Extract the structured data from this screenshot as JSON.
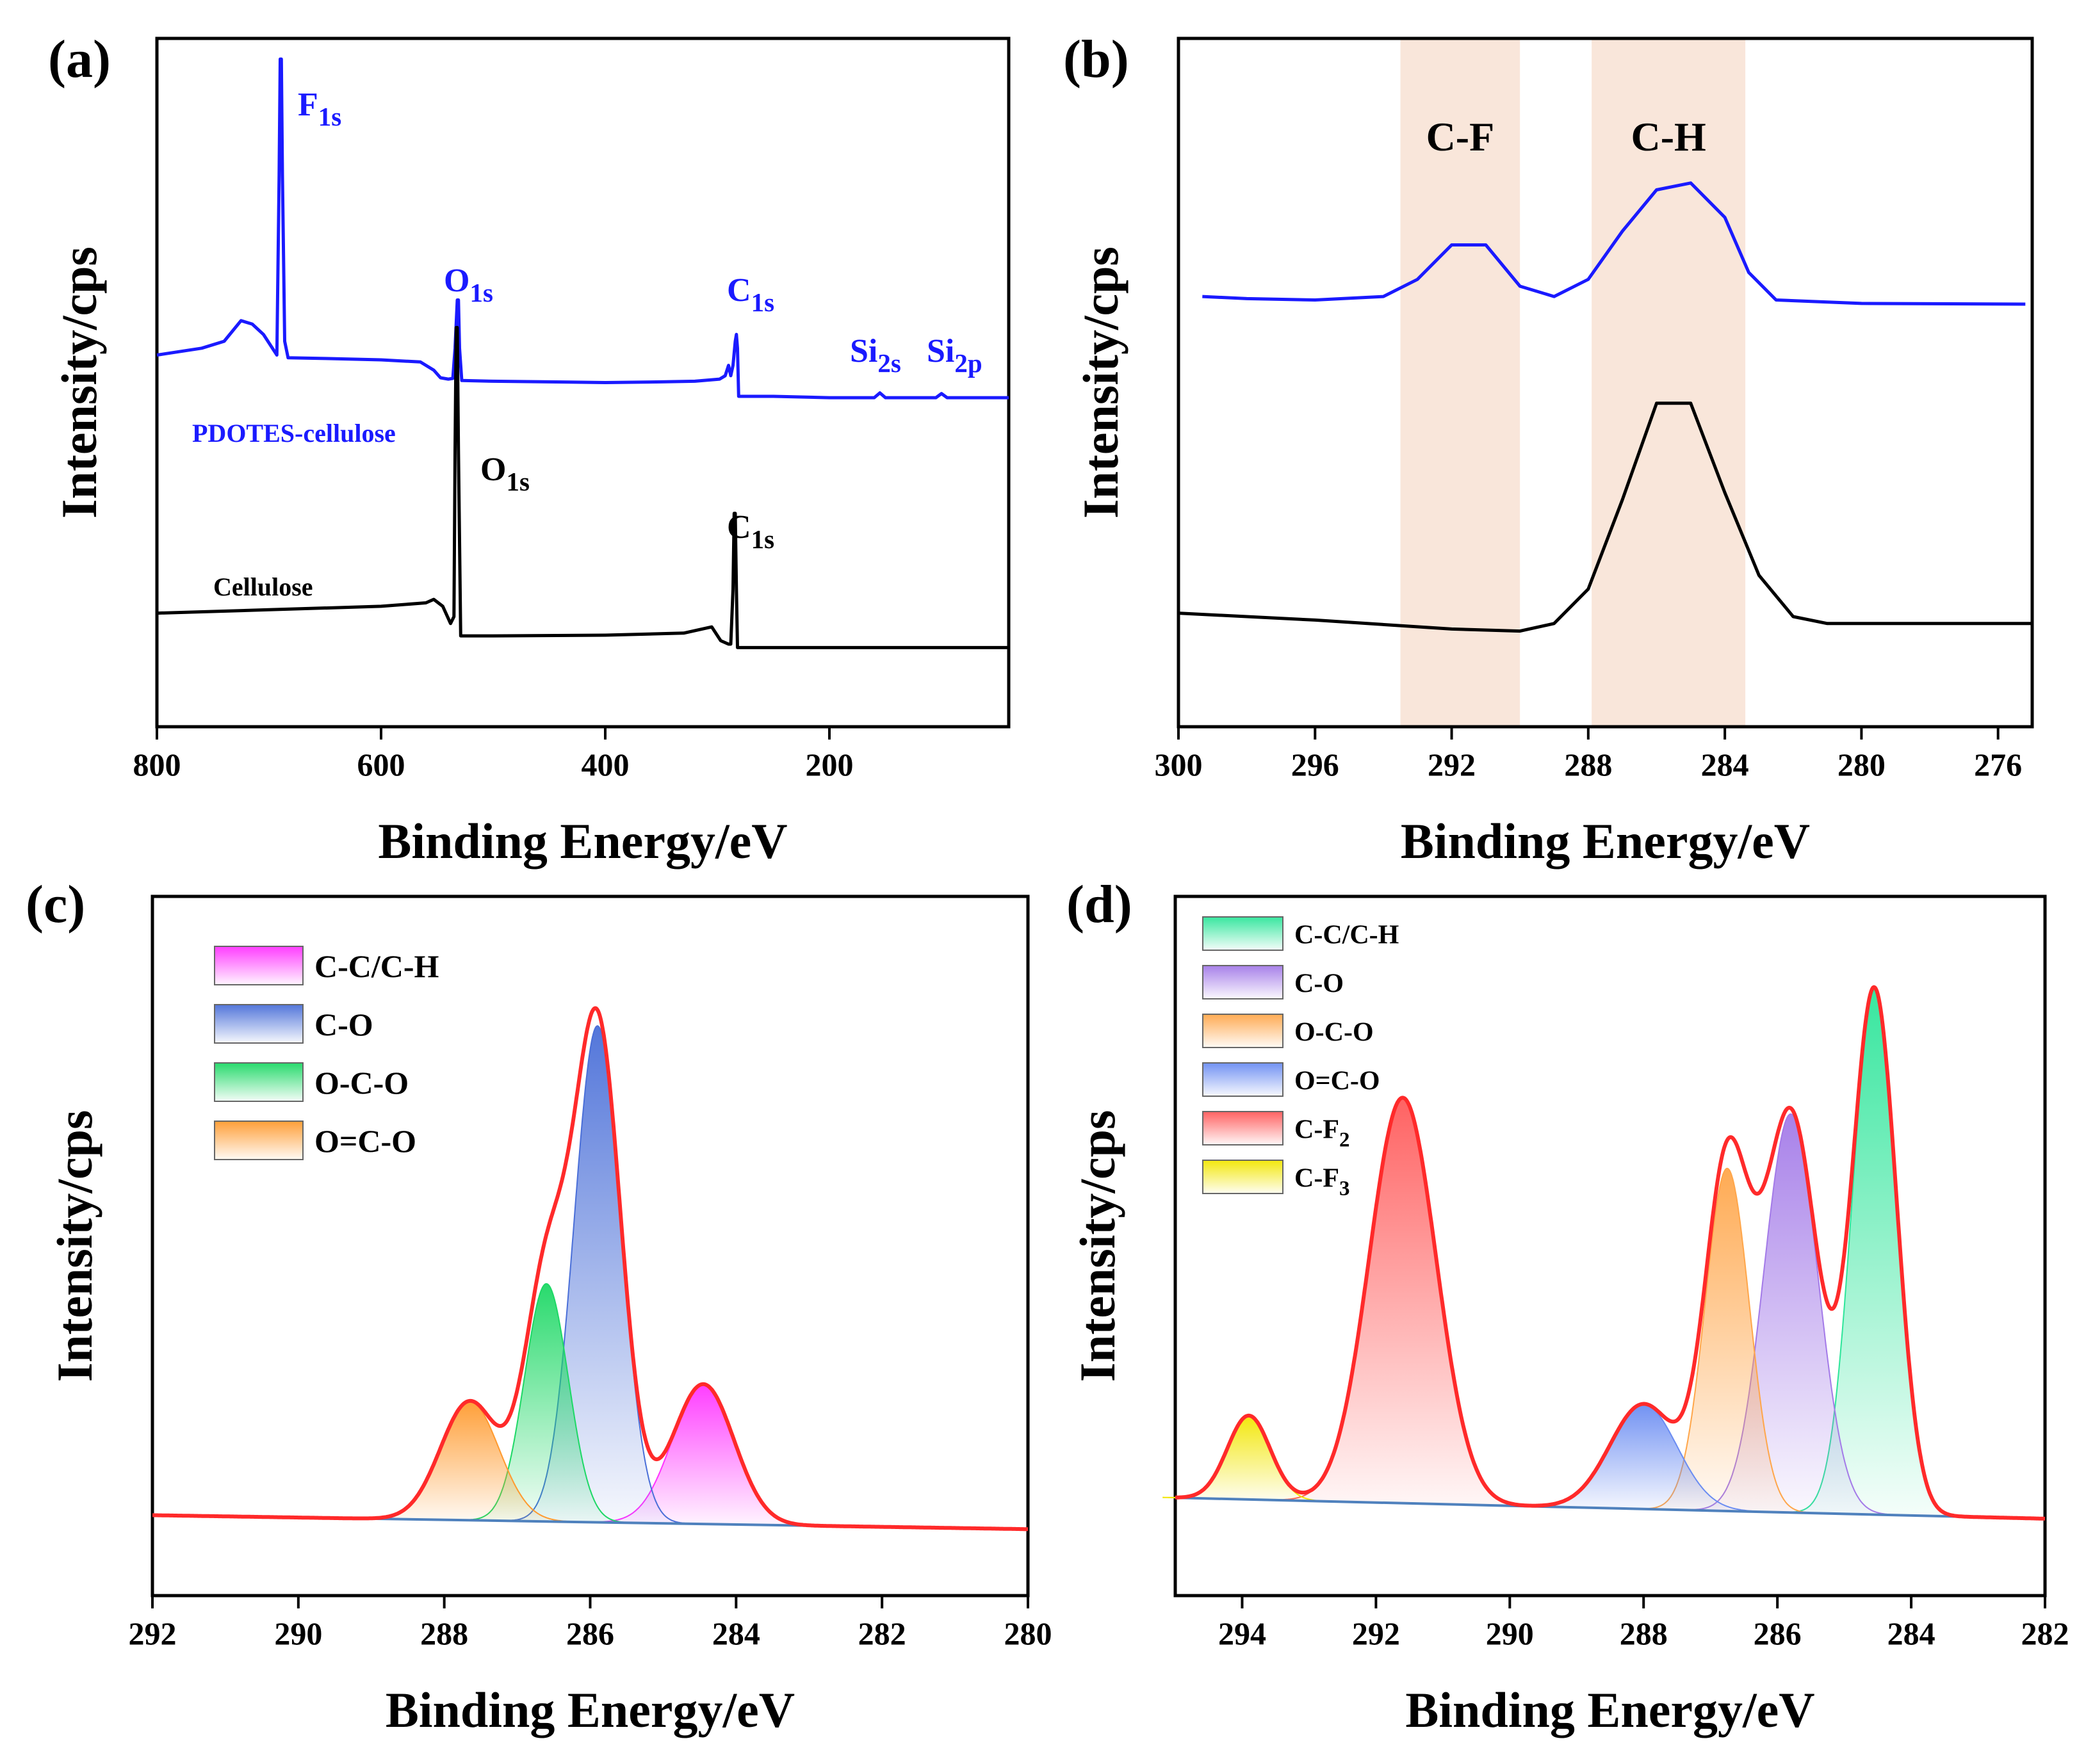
{
  "chart_data": [
    {
      "panel_label": "(a)",
      "type": "line",
      "title": "",
      "xlabel": "Binding Energy/eV",
      "ylabel": "Intensity/cps",
      "xlim": [
        800,
        40
      ],
      "ylim": [
        0,
        100
      ],
      "xticks": [
        800,
        600,
        400,
        200
      ],
      "series": [
        {
          "name": "PDOTES-cellulose",
          "color": "#1a1aff",
          "points": [
            [
              800,
              54
            ],
            [
              760,
              55
            ],
            [
              740,
              56
            ],
            [
              725,
              59
            ],
            [
              715,
              58.5
            ],
            [
              705,
              57
            ],
            [
              697,
              55
            ],
            [
              693,
              54
            ],
            [
              691,
              80
            ],
            [
              690,
              97
            ],
            [
              689,
              97
            ],
            [
              688,
              80
            ],
            [
              686,
              56
            ],
            [
              683,
              53.6
            ],
            [
              650,
              53.5
            ],
            [
              600,
              53.3
            ],
            [
              565,
              53
            ],
            [
              553,
              51.8
            ],
            [
              547,
              50.7
            ],
            [
              540,
              50.5
            ],
            [
              536,
              50.6
            ],
            [
              534,
              55
            ],
            [
              532,
              62
            ],
            [
              531,
              62
            ],
            [
              530,
              55
            ],
            [
              528,
              50.3
            ],
            [
              500,
              50.2
            ],
            [
              450,
              50.1
            ],
            [
              400,
              50
            ],
            [
              350,
              50.1
            ],
            [
              320,
              50.2
            ],
            [
              298,
              50.5
            ],
            [
              293,
              51
            ],
            [
              290,
              52.5
            ],
            [
              288,
              51
            ],
            [
              286,
              52.5
            ],
            [
              284,
              56
            ],
            [
              283,
              57
            ],
            [
              282,
              55
            ],
            [
              281,
              48
            ],
            [
              280,
              48
            ],
            [
              250,
              48
            ],
            [
              200,
              47.8
            ],
            [
              160,
              47.8
            ],
            [
              155,
              48.5
            ],
            [
              150,
              47.8
            ],
            [
              105,
              47.8
            ],
            [
              100,
              48.4
            ],
            [
              95,
              47.8
            ],
            [
              40,
              47.8
            ]
          ]
        },
        {
          "name": "Cellulose",
          "color": "#000000",
          "points": [
            [
              800,
              16.5
            ],
            [
              700,
              17
            ],
            [
              600,
              17.5
            ],
            [
              560,
              18
            ],
            [
              553,
              18.5
            ],
            [
              545,
              17.5
            ],
            [
              538,
              15
            ],
            [
              535,
              16
            ],
            [
              534,
              40
            ],
            [
              533,
              58
            ],
            [
              532,
              58
            ],
            [
              531,
              40
            ],
            [
              529,
              13.2
            ],
            [
              500,
              13.2
            ],
            [
              400,
              13.3
            ],
            [
              330,
              13.6
            ],
            [
              305,
              14.5
            ],
            [
              297,
              12.5
            ],
            [
              290,
              12
            ],
            [
              288,
              12
            ],
            [
              286,
              20
            ],
            [
              285,
              31
            ],
            [
              284,
              31
            ],
            [
              283,
              20
            ],
            [
              282,
              11.5
            ],
            [
              280,
              11.5
            ],
            [
              200,
              11.5
            ],
            [
              40,
              11.5
            ]
          ]
        }
      ],
      "annotations": [
        {
          "base": "F",
          "sub": "1s",
          "color": "#1a1aff"
        },
        {
          "base": "O",
          "sub": "1s",
          "color": "#1a1aff"
        },
        {
          "base": "C",
          "sub": "1s",
          "color": "#1a1aff"
        },
        {
          "base": "Si",
          "sub": "2s",
          "color": "#1a1aff"
        },
        {
          "base": "Si",
          "sub": "2p",
          "color": "#1a1aff"
        },
        {
          "base": "O",
          "sub": "1s",
          "color": "#000000"
        },
        {
          "base": "C",
          "sub": "1s",
          "color": "#000000"
        }
      ]
    },
    {
      "panel_label": "(b)",
      "type": "line",
      "title": "",
      "xlabel": "Binding Energy/eV",
      "ylabel": "Intensity/cps",
      "xlim": [
        300,
        275
      ],
      "ylim": [
        0,
        100
      ],
      "xticks": [
        300,
        296,
        292,
        288,
        284,
        280,
        276
      ],
      "highlight_bands": [
        {
          "label": "C-F",
          "from": 293.5,
          "to": 290.0,
          "color": "#f9e6da"
        },
        {
          "label": "C-H",
          "from": 287.9,
          "to": 283.4,
          "color": "#f9e6da"
        }
      ],
      "series": [
        {
          "name": "PDOTES-cellulose",
          "color": "#1a1aff",
          "points": [
            [
              299.3,
              62.5
            ],
            [
              298,
              62.2
            ],
            [
              296,
              62
            ],
            [
              294,
              62.5
            ],
            [
              293,
              65
            ],
            [
              292,
              70
            ],
            [
              291,
              70
            ],
            [
              290,
              64
            ],
            [
              289,
              62.5
            ],
            [
              288,
              65
            ],
            [
              287,
              72
            ],
            [
              286,
              78
            ],
            [
              285,
              79
            ],
            [
              284,
              74
            ],
            [
              283.3,
              66
            ],
            [
              282.5,
              62
            ],
            [
              280,
              61.5
            ],
            [
              275.2,
              61.4
            ]
          ]
        },
        {
          "name": "Cellulose",
          "color": "#000000",
          "points": [
            [
              300,
              16.5
            ],
            [
              296,
              15.5
            ],
            [
              292,
              14.2
            ],
            [
              290,
              13.9
            ],
            [
              289,
              15
            ],
            [
              288,
              20
            ],
            [
              287,
              33
            ],
            [
              286,
              47
            ],
            [
              285,
              47
            ],
            [
              284,
              34
            ],
            [
              283,
              22
            ],
            [
              282,
              16
            ],
            [
              281,
              15
            ],
            [
              279,
              15
            ],
            [
              275,
              15
            ]
          ]
        }
      ]
    },
    {
      "panel_label": "(c)",
      "type": "line",
      "title": "",
      "xlabel": "Binding Energy/eV",
      "ylabel": "Intensity/cps",
      "xlim": [
        292,
        280
      ],
      "ylim": [
        0,
        100
      ],
      "xticks": [
        292,
        290,
        288,
        286,
        284,
        282,
        280
      ],
      "baseline": {
        "start": 11.5,
        "end": 9.5,
        "color": "#4f81bd"
      },
      "envelope_color": "#ff2a2a",
      "peaks": [
        {
          "label": "C-C/C-H",
          "center": 284.45,
          "height": 20,
          "sigma": 0.42,
          "color": "#ff33ff"
        },
        {
          "label": "C-O",
          "center": 285.9,
          "height": 71,
          "sigma": 0.32,
          "color": "#4a6fd8"
        },
        {
          "label": "O-C-O",
          "center": 286.6,
          "height": 34,
          "sigma": 0.3,
          "color": "#1dd865"
        },
        {
          "label": "O=C-O",
          "center": 287.65,
          "height": 17,
          "sigma": 0.4,
          "color": "#ff9a2e"
        }
      ]
    },
    {
      "panel_label": "(d)",
      "type": "line",
      "title": "",
      "xlabel": "Binding Energy/eV",
      "ylabel": "Intensity/cps",
      "xlim": [
        295,
        282
      ],
      "ylim": [
        0,
        100
      ],
      "xticks": [
        294,
        292,
        290,
        288,
        286,
        284,
        282
      ],
      "baseline": {
        "start": 14,
        "end": 11,
        "color": "#4f81bd"
      },
      "envelope_color": "#ff2a2a",
      "peaks": [
        {
          "label": "C-C/C-H",
          "base": "C-C/C-H",
          "sub": "",
          "center": 284.55,
          "height": 75,
          "sigma": 0.33,
          "color": "#2ee59a"
        },
        {
          "label": "C-O",
          "base": "C-O",
          "sub": "",
          "center": 285.8,
          "height": 57,
          "sigma": 0.4,
          "color": "#a37ae8"
        },
        {
          "label": "O-C-O",
          "base": "O-C-O",
          "sub": "",
          "center": 286.75,
          "height": 49,
          "sigma": 0.33,
          "color": "#ffa64a"
        },
        {
          "label": "O=C-O",
          "base": "O=C-O",
          "sub": "",
          "center": 288.0,
          "height": 15,
          "sigma": 0.5,
          "color": "#6a8cf2"
        },
        {
          "label": "C-F2",
          "base": "C-F",
          "sub": "2",
          "center": 291.6,
          "height": 58,
          "sigma": 0.5,
          "color": "#ff5a5a"
        },
        {
          "label": "C-F3",
          "base": "C-F",
          "sub": "3",
          "center": 293.9,
          "height": 12,
          "sigma": 0.32,
          "color": "#f2e600"
        }
      ]
    }
  ]
}
